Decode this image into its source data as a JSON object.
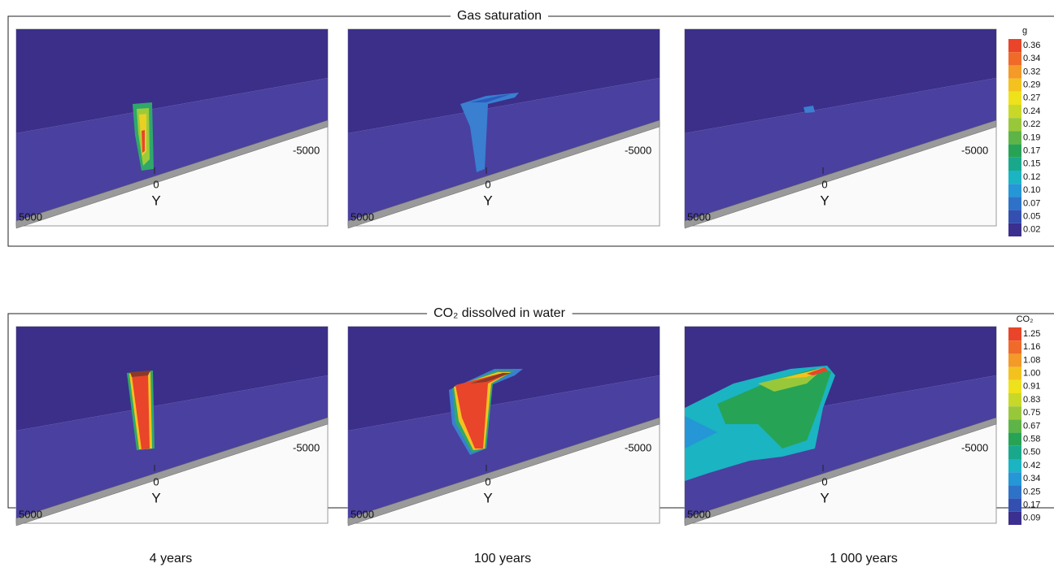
{
  "rows": [
    {
      "title": "Gas saturation",
      "legend_title": "g",
      "legend_labels": [
        "0.36",
        "0.34",
        "0.32",
        "0.29",
        "0.27",
        "0.24",
        "0.22",
        "0.19",
        "0.17",
        "0.15",
        "0.12",
        "0.10",
        "0.07",
        "0.05",
        "0.02"
      ]
    },
    {
      "title": "CO₂ dissolved in water",
      "legend_title": "CO₂",
      "legend_labels": [
        "1.25",
        "1.16",
        "1.08",
        "1.00",
        "0.91",
        "0.83",
        "0.75",
        "0.67",
        "0.58",
        "0.50",
        "0.42",
        "0.34",
        "0.25",
        "0.17",
        "0.09"
      ]
    }
  ],
  "axis_labels": {
    "near": "5000",
    "zero": "0",
    "far": "-5000",
    "name": "Y"
  },
  "columns": [
    "4 years",
    "100 years",
    "1 000 years"
  ]
}
